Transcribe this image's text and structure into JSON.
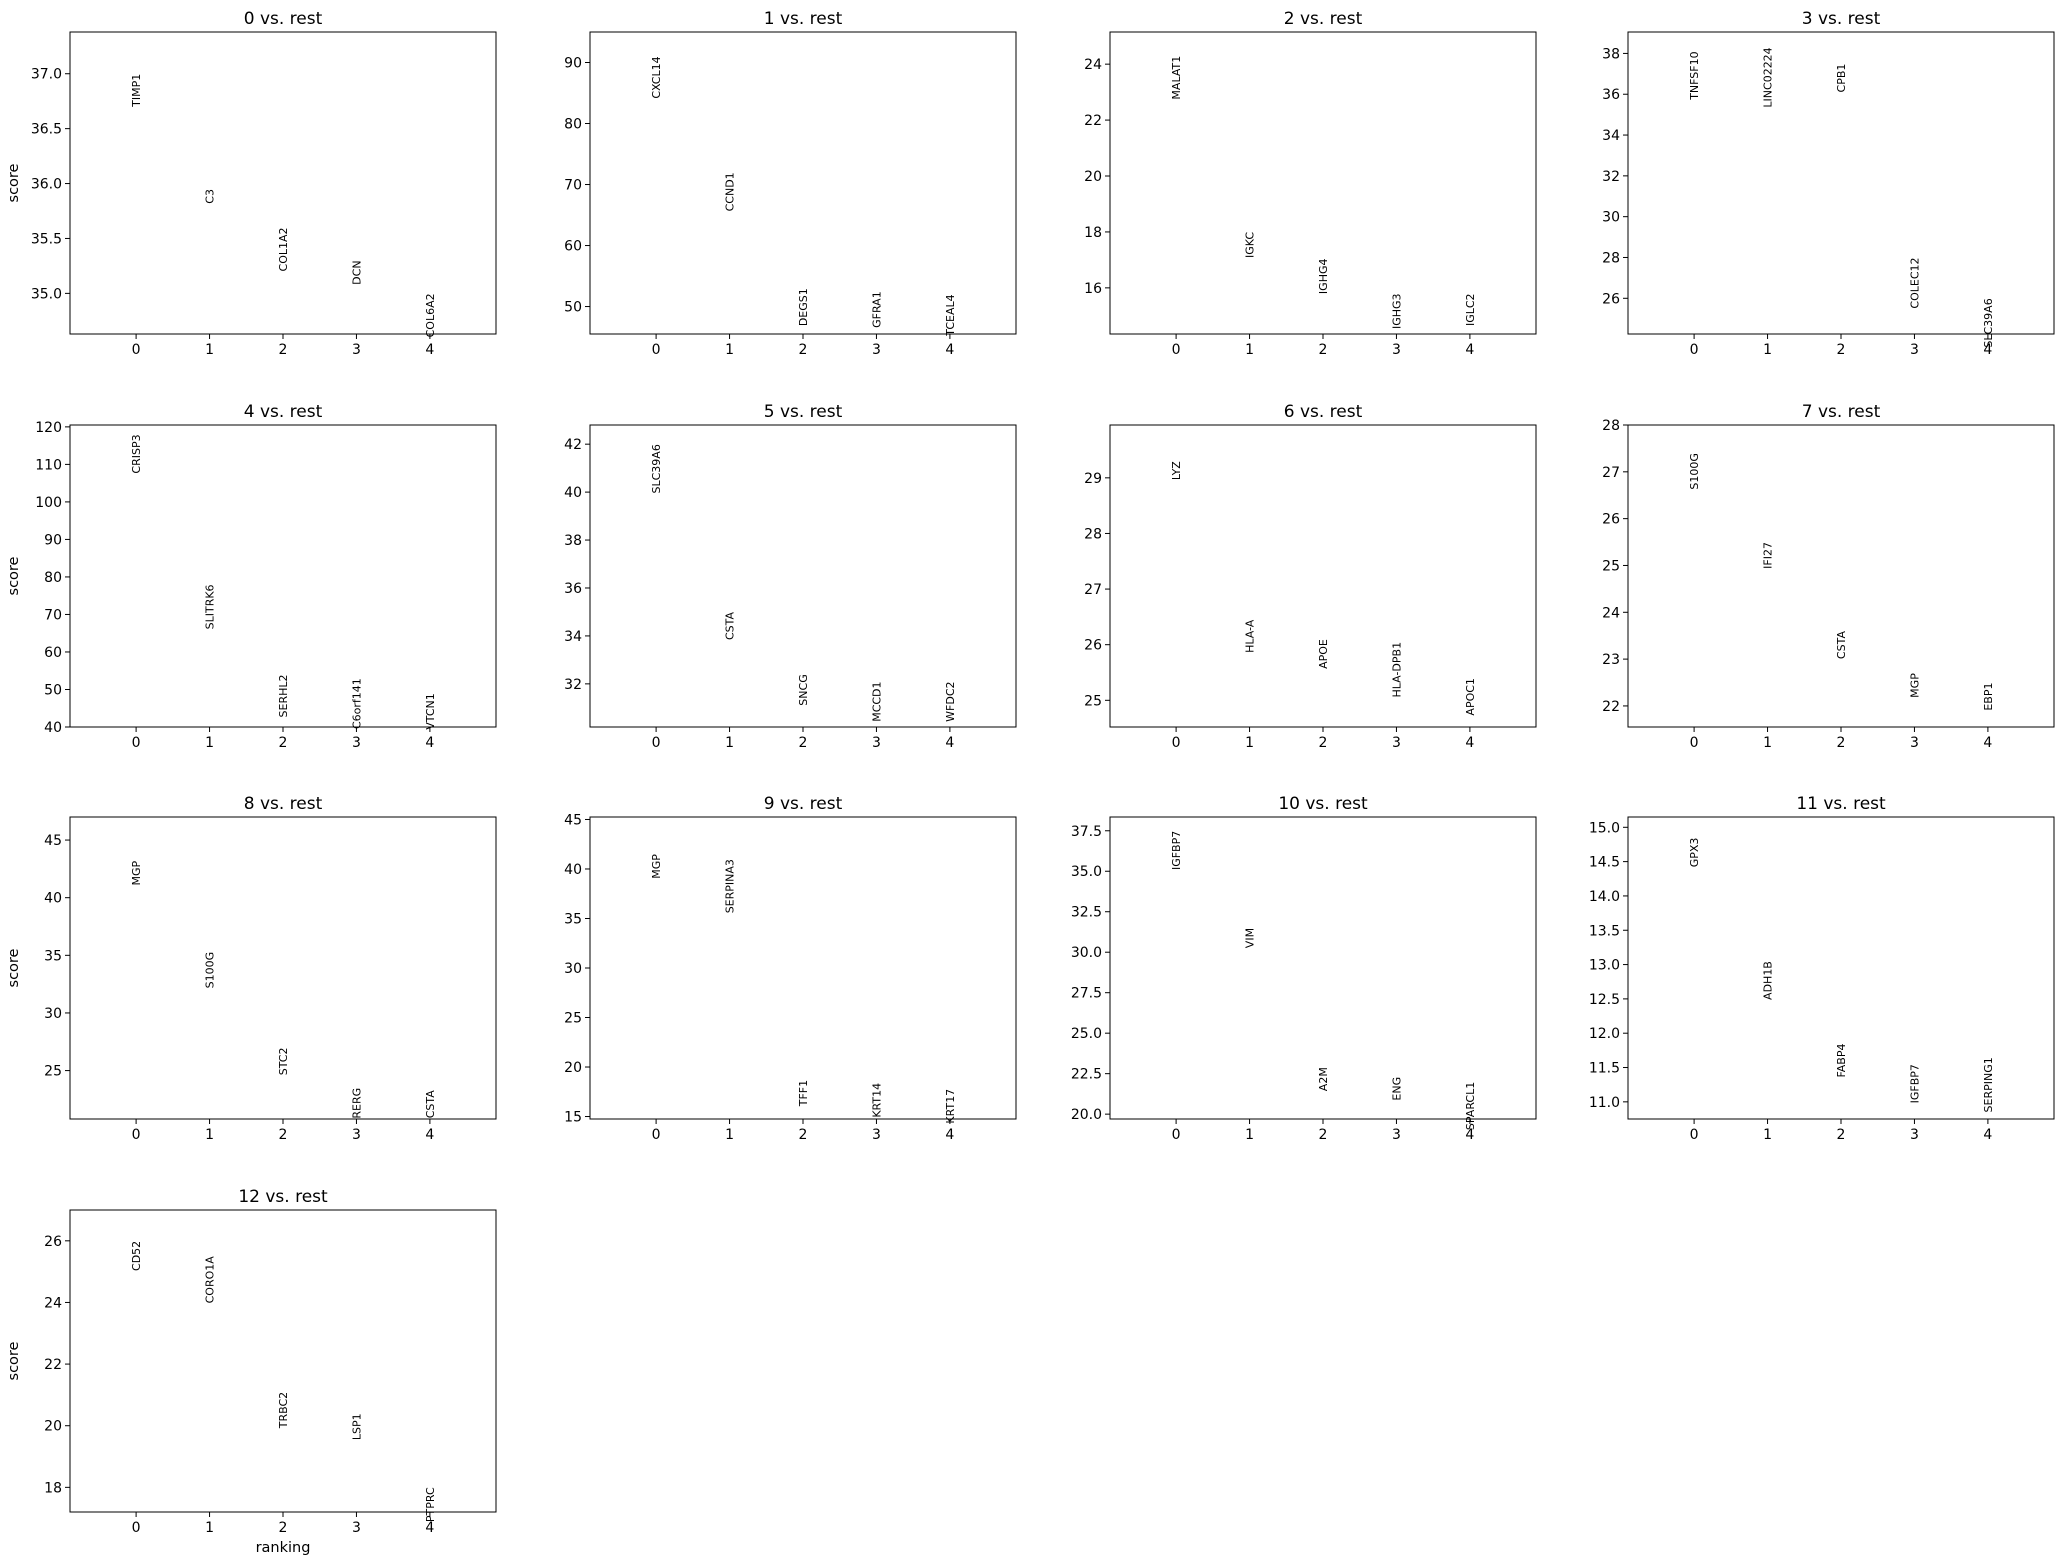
{
  "figure": {
    "xlabel": "ranking",
    "ylabel": "score"
  },
  "chart_data": [
    {
      "type": "scatter",
      "title": "0 vs. rest",
      "x": [
        0,
        1,
        2,
        3,
        4
      ],
      "genes": [
        "TIMP1",
        "C3",
        "COL1A2",
        "DCN",
        "COL6A2"
      ],
      "values": [
        37.0,
        35.95,
        35.6,
        35.3,
        35.0
      ],
      "ylim": [
        34.63,
        37.38
      ],
      "yticks": [
        35.0,
        35.5,
        36.0,
        36.5,
        37.0
      ],
      "ytick_labels": [
        "35.0",
        "35.5",
        "36.0",
        "36.5",
        "37.0"
      ]
    },
    {
      "type": "scatter",
      "title": "1 vs. rest",
      "x": [
        0,
        1,
        2,
        3,
        4
      ],
      "genes": [
        "CXCL14",
        "CCND1",
        "DEGS1",
        "GFRA1",
        "TCEAL4"
      ],
      "values": [
        91.0,
        72.0,
        53.0,
        52.5,
        52.0
      ],
      "ylim": [
        45.5,
        95.0
      ],
      "yticks": [
        50,
        60,
        70,
        80,
        90
      ],
      "ytick_labels": [
        "50",
        "60",
        "70",
        "80",
        "90"
      ]
    },
    {
      "type": "scatter",
      "title": "2 vs. rest",
      "x": [
        0,
        1,
        2,
        3,
        4
      ],
      "genes": [
        "MALAT1",
        "IGKC",
        "IGHG4",
        "IGHG3",
        "IGLC2"
      ],
      "values": [
        24.3,
        18.0,
        17.05,
        15.8,
        15.8
      ],
      "ylim": [
        14.35,
        25.15
      ],
      "yticks": [
        16,
        18,
        20,
        22,
        24
      ],
      "ytick_labels": [
        "16",
        "18",
        "20",
        "22",
        "24"
      ]
    },
    {
      "type": "scatter",
      "title": "3 vs. rest",
      "x": [
        0,
        1,
        2,
        3,
        4
      ],
      "genes": [
        "TNFSF10",
        "LINC02224",
        "CPB1",
        "COLEC12",
        "SLC39A6"
      ],
      "values": [
        38.1,
        38.3,
        37.5,
        28.0,
        26.0
      ],
      "ylim": [
        24.25,
        39.05
      ],
      "yticks": [
        26,
        28,
        30,
        32,
        34,
        36,
        38
      ],
      "ytick_labels": [
        "26",
        "28",
        "30",
        "32",
        "34",
        "36",
        "38"
      ]
    },
    {
      "type": "scatter",
      "title": "4 vs. rest",
      "x": [
        0,
        1,
        2,
        3,
        4
      ],
      "genes": [
        "CRISP3",
        "SLITRK6",
        "SERHL2",
        "C6orf141",
        "VTCN1"
      ],
      "values": [
        118.0,
        78.0,
        54.0,
        53.0,
        49.0
      ],
      "ylim": [
        40.0,
        120.5
      ],
      "yticks": [
        40,
        50,
        60,
        70,
        80,
        90,
        100,
        110,
        120
      ],
      "ytick_labels": [
        "40",
        "50",
        "60",
        "70",
        "80",
        "90",
        "100",
        "110",
        "120"
      ]
    },
    {
      "type": "scatter",
      "title": "5 vs. rest",
      "x": [
        0,
        1,
        2,
        3,
        4
      ],
      "genes": [
        "SLC39A6",
        "CSTA",
        "SNCG",
        "MCCD1",
        "WFDC2"
      ],
      "values": [
        42.0,
        35.0,
        32.4,
        32.1,
        32.1
      ],
      "ylim": [
        30.2,
        42.8
      ],
      "yticks": [
        32,
        34,
        36,
        38,
        40,
        42
      ],
      "ytick_labels": [
        "32",
        "34",
        "36",
        "38",
        "40",
        "42"
      ]
    },
    {
      "type": "scatter",
      "title": "6 vs. rest",
      "x": [
        0,
        1,
        2,
        3,
        4
      ],
      "genes": [
        "LYZ",
        "HLA-A",
        "APOE",
        "HLA-DPB1",
        "APOC1"
      ],
      "values": [
        29.3,
        26.45,
        26.1,
        26.05,
        25.4
      ],
      "ylim": [
        24.52,
        29.95
      ],
      "yticks": [
        25,
        26,
        27,
        28,
        29
      ],
      "ytick_labels": [
        "25",
        "26",
        "27",
        "28",
        "29"
      ]
    },
    {
      "type": "scatter",
      "title": "7 vs. rest",
      "x": [
        0,
        1,
        2,
        3,
        4
      ],
      "genes": [
        "S100G",
        "IFI27",
        "CSTA",
        "MGP",
        "EBP1"
      ],
      "values": [
        27.4,
        25.5,
        23.6,
        22.7,
        22.5
      ],
      "ylim": [
        21.55,
        28.0
      ],
      "yticks": [
        22,
        23,
        24,
        25,
        26,
        27,
        28
      ],
      "ytick_labels": [
        "22",
        "23",
        "24",
        "25",
        "26",
        "27",
        "28"
      ]
    },
    {
      "type": "scatter",
      "title": "8 vs. rest",
      "x": [
        0,
        1,
        2,
        3,
        4
      ],
      "genes": [
        "MGP",
        "S100G",
        "STC2",
        "RERG",
        "CSTA"
      ],
      "values": [
        43.2,
        35.3,
        27.0,
        23.5,
        23.3
      ],
      "ylim": [
        20.8,
        47.0
      ],
      "yticks": [
        25,
        30,
        35,
        40,
        45
      ],
      "ytick_labels": [
        "25",
        "30",
        "35",
        "40",
        "45"
      ]
    },
    {
      "type": "scatter",
      "title": "9 vs. rest",
      "x": [
        0,
        1,
        2,
        3,
        4
      ],
      "genes": [
        "MGP",
        "SERPINA3",
        "TFF1",
        "KRT14",
        "KRT17"
      ],
      "values": [
        41.5,
        41.0,
        18.7,
        18.4,
        17.8
      ],
      "ylim": [
        14.75,
        45.25
      ],
      "yticks": [
        15,
        20,
        25,
        30,
        35,
        40,
        45
      ],
      "ytick_labels": [
        "15",
        "20",
        "25",
        "30",
        "35",
        "40",
        "45"
      ]
    },
    {
      "type": "scatter",
      "title": "10 vs. rest",
      "x": [
        0,
        1,
        2,
        3,
        4
      ],
      "genes": [
        "IGFBP7",
        "VIM",
        "A2M",
        "ENG",
        "SPARCL1"
      ],
      "values": [
        37.5,
        31.5,
        22.9,
        22.3,
        22.0
      ],
      "ylim": [
        19.7,
        38.35
      ],
      "yticks": [
        20.0,
        22.5,
        25.0,
        27.5,
        30.0,
        32.5,
        35.0,
        37.5
      ],
      "ytick_labels": [
        "20.0",
        "22.5",
        "25.0",
        "27.5",
        "30.0",
        "32.5",
        "35.0",
        "37.5"
      ]
    },
    {
      "type": "scatter",
      "title": "11 vs. rest",
      "x": [
        0,
        1,
        2,
        3,
        4
      ],
      "genes": [
        "GPX3",
        "ADH1B",
        "FABP4",
        "IGFBP7",
        "SERPING1"
      ],
      "values": [
        14.85,
        13.05,
        11.85,
        11.55,
        11.65
      ],
      "ylim": [
        10.75,
        15.15
      ],
      "yticks": [
        11.0,
        11.5,
        12.0,
        12.5,
        13.0,
        13.5,
        14.0,
        14.5,
        15.0
      ],
      "ytick_labels": [
        "11.0",
        "11.5",
        "12.0",
        "12.5",
        "13.0",
        "13.5",
        "14.0",
        "14.5",
        "15.0"
      ]
    },
    {
      "type": "scatter",
      "title": "12 vs. rest",
      "x": [
        0,
        1,
        2,
        3,
        4
      ],
      "genes": [
        "CD52",
        "CORO1A",
        "TRBC2",
        "LSP1",
        "PTPRC"
      ],
      "values": [
        26.0,
        25.5,
        21.1,
        20.4,
        18.0
      ],
      "ylim": [
        17.2,
        27.0
      ],
      "yticks": [
        18,
        20,
        22,
        24,
        26
      ],
      "ytick_labels": [
        "18",
        "20",
        "22",
        "24",
        "26"
      ]
    }
  ]
}
